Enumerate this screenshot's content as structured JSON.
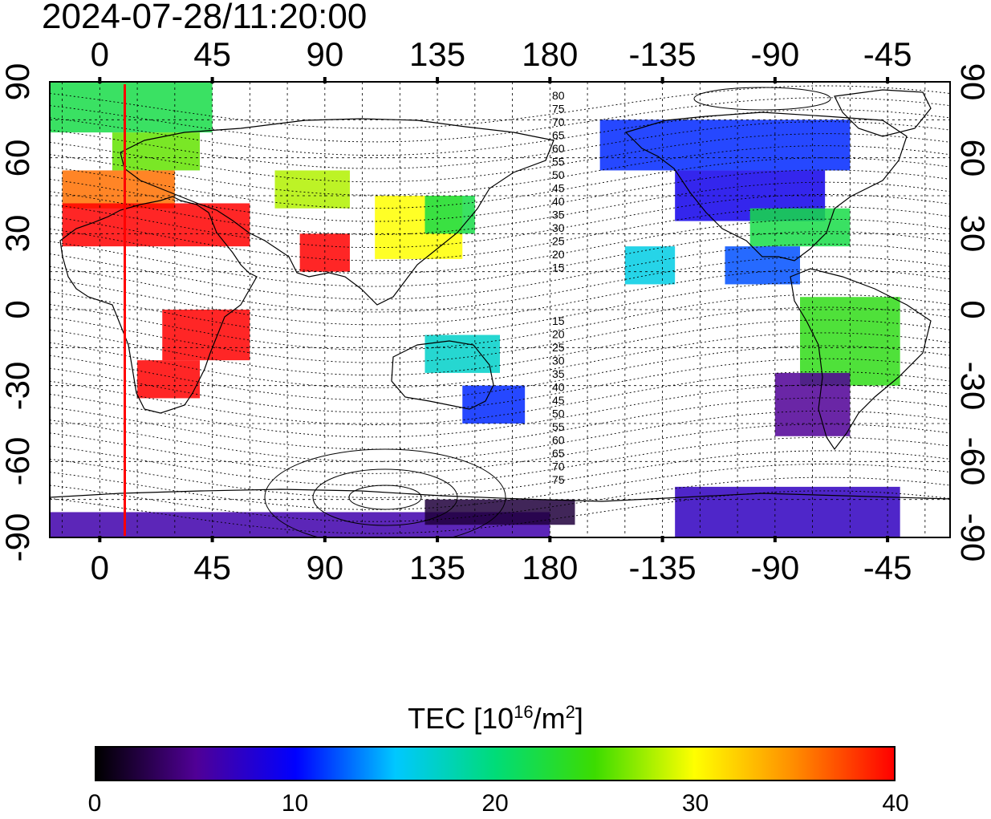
{
  "timestamp": "2024-07-28/11:20:00",
  "top_lon_ticks": [
    "0",
    "45",
    "90",
    "135",
    "180",
    "-135",
    "-90",
    "-45"
  ],
  "bottom_lon_ticks": [
    "0",
    "45",
    "90",
    "135",
    "180",
    "-135",
    "-90",
    "-45"
  ],
  "left_lat_ticks": [
    "90",
    "60",
    "30",
    "0",
    "-30",
    "-60",
    "-90"
  ],
  "right_lat_ticks": [
    "90",
    "60",
    "30",
    "0",
    "-30",
    "-60",
    "-90"
  ],
  "contour_labels_upper": [
    "80",
    "75",
    "70",
    "65",
    "60",
    "55",
    "50",
    "45",
    "40",
    "35",
    "30",
    "25",
    "20",
    "15"
  ],
  "contour_labels_lower": [
    "15",
    "20",
    "25",
    "30",
    "35",
    "40",
    "45",
    "50",
    "55",
    "60",
    "65",
    "70",
    "75"
  ],
  "colorbar": {
    "title_prefix": "TEC  [10",
    "title_sup1": "16",
    "title_mid": "/m",
    "title_sup2": "2",
    "title_suffix": "]",
    "ticks": [
      "0",
      "10",
      "20",
      "30",
      "40"
    ],
    "min": 0,
    "max": 40
  },
  "terminator_line_color": "#ff0000",
  "terminator_longitude": 10,
  "tec_regions": [
    {
      "lon_min": -20,
      "lon_max": 45,
      "lat_min": 70,
      "lat_max": 90,
      "tec": 22
    },
    {
      "lon_min": 5,
      "lon_max": 40,
      "lat_min": 55,
      "lat_max": 70,
      "tec": 26
    },
    {
      "lon_min": -15,
      "lon_max": 30,
      "lat_min": 40,
      "lat_max": 55,
      "tec": 36
    },
    {
      "lon_min": -15,
      "lon_max": 60,
      "lat_min": 25,
      "lat_max": 42,
      "tec": 40
    },
    {
      "lon_min": 70,
      "lon_max": 100,
      "lat_min": 40,
      "lat_max": 55,
      "tec": 28
    },
    {
      "lon_min": 80,
      "lon_max": 100,
      "lat_min": 15,
      "lat_max": 30,
      "tec": 40
    },
    {
      "lon_min": 110,
      "lon_max": 145,
      "lat_min": 20,
      "lat_max": 45,
      "tec": 30
    },
    {
      "lon_min": 130,
      "lon_max": 150,
      "lat_min": 30,
      "lat_max": 45,
      "tec": 22
    },
    {
      "lon_min": 15,
      "lon_max": 40,
      "lat_min": -35,
      "lat_max": -20,
      "tec": 40
    },
    {
      "lon_min": 25,
      "lon_max": 60,
      "lat_min": -20,
      "lat_max": 0,
      "tec": 40
    },
    {
      "lon_min": 145,
      "lon_max": 170,
      "lat_min": -45,
      "lat_max": -30,
      "tec": 11
    },
    {
      "lon_min": 130,
      "lon_max": 160,
      "lat_min": -25,
      "lat_max": -10,
      "tec": 17
    },
    {
      "lon_min": -160,
      "lon_max": -60,
      "lat_min": 55,
      "lat_max": 75,
      "tec": 11
    },
    {
      "lon_min": -130,
      "lon_max": -70,
      "lat_min": 35,
      "lat_max": 55,
      "tec": 9
    },
    {
      "lon_min": -100,
      "lon_max": -60,
      "lat_min": 25,
      "lat_max": 40,
      "tec": 22
    },
    {
      "lon_min": -110,
      "lon_max": -80,
      "lat_min": 10,
      "lat_max": 25,
      "tec": 12
    },
    {
      "lon_min": -80,
      "lon_max": -40,
      "lat_min": -30,
      "lat_max": 5,
      "tec": 24
    },
    {
      "lon_min": -90,
      "lon_max": -60,
      "lat_min": -50,
      "lat_max": -25,
      "tec": 5
    },
    {
      "lon_min": -150,
      "lon_max": -130,
      "lat_min": 10,
      "lat_max": 25,
      "tec": 16
    },
    {
      "lon_min": -20,
      "lon_max": 180,
      "lat_min": -90,
      "lat_max": -80,
      "tec": 6
    },
    {
      "lon_min": 130,
      "lon_max": 190,
      "lat_min": -85,
      "lat_max": -75,
      "tec": 2
    },
    {
      "lon_min": -130,
      "lon_max": -40,
      "lat_min": -90,
      "lat_max": -70,
      "tec": 7
    }
  ]
}
